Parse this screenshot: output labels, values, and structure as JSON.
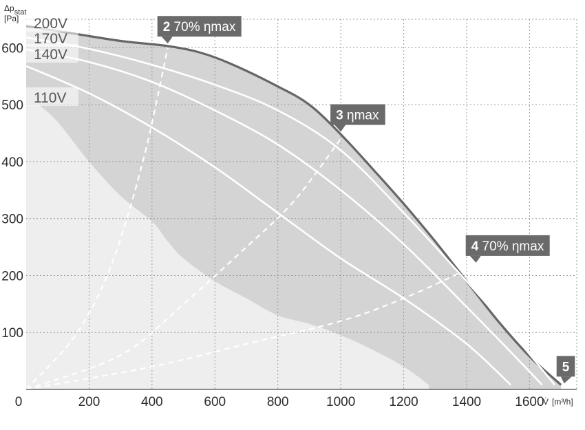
{
  "chart_data": {
    "type": "line",
    "title": "",
    "xlabel": "V̇",
    "xunit": "[m³/h]",
    "ylabel": "Δp_stat",
    "yunit": "[Pa]",
    "xlim": [
      0,
      1750
    ],
    "ylim": [
      0,
      650
    ],
    "x_ticks": [
      "0",
      "200",
      "400",
      "600",
      "800",
      "1000",
      "1200",
      "1400",
      "1600"
    ],
    "y_ticks": [
      "100",
      "200",
      "300",
      "400",
      "500",
      "600"
    ],
    "grid": true,
    "colors": {
      "area_dark": "#d4d4d4",
      "area_light": "#eeeeee",
      "max_curve": "#666666",
      "voltage_curve": "#ffffff",
      "label_box": "#6a6a6a",
      "grid": "#9a9a9a"
    },
    "voltage_curves": [
      {
        "label": "200V",
        "points": [
          [
            0,
            638
          ],
          [
            150,
            625
          ],
          [
            300,
            612
          ],
          [
            450,
            603
          ],
          [
            550,
            592
          ],
          [
            650,
            572
          ],
          [
            800,
            532
          ],
          [
            900,
            500
          ],
          [
            1000,
            448
          ],
          [
            1100,
            388
          ],
          [
            1200,
            326
          ],
          [
            1300,
            260
          ],
          [
            1400,
            190
          ],
          [
            1500,
            120
          ],
          [
            1600,
            58
          ],
          [
            1700,
            8
          ]
        ]
      },
      {
        "label": "170V",
        "points": [
          [
            0,
            618
          ],
          [
            200,
            598
          ],
          [
            400,
            570
          ],
          [
            600,
            535
          ],
          [
            800,
            490
          ],
          [
            1000,
            420
          ],
          [
            1200,
            310
          ],
          [
            1400,
            190
          ],
          [
            1550,
            95
          ],
          [
            1680,
            8
          ]
        ]
      },
      {
        "label": "140V",
        "points": [
          [
            0,
            597
          ],
          [
            200,
            575
          ],
          [
            400,
            540
          ],
          [
            600,
            490
          ],
          [
            800,
            430
          ],
          [
            1000,
            350
          ],
          [
            1200,
            255
          ],
          [
            1400,
            145
          ],
          [
            1550,
            60
          ],
          [
            1640,
            8
          ]
        ]
      },
      {
        "label": "110V",
        "points": [
          [
            0,
            568
          ],
          [
            200,
            520
          ],
          [
            400,
            460
          ],
          [
            600,
            390
          ],
          [
            800,
            310
          ],
          [
            1000,
            230
          ],
          [
            1200,
            160
          ],
          [
            1400,
            80
          ],
          [
            1540,
            8
          ]
        ]
      }
    ],
    "min_boundary": [
      [
        40,
        500
      ],
      [
        100,
        470
      ],
      [
        200,
        400
      ],
      [
        300,
        340
      ],
      [
        400,
        295
      ],
      [
        450,
        260
      ],
      [
        500,
        230
      ],
      [
        600,
        190
      ],
      [
        700,
        160
      ],
      [
        800,
        130
      ],
      [
        900,
        115
      ],
      [
        1000,
        95
      ],
      [
        1100,
        70
      ],
      [
        1200,
        40
      ],
      [
        1280,
        8
      ]
    ],
    "operating_lines": [
      {
        "label": "2",
        "points": [
          [
            0,
            0
          ],
          [
            150,
            90
          ],
          [
            250,
            190
          ],
          [
            320,
            300
          ],
          [
            380,
            420
          ],
          [
            420,
            520
          ],
          [
            450,
            600
          ]
        ]
      },
      {
        "label": "3",
        "points": [
          [
            0,
            0
          ],
          [
            300,
            60
          ],
          [
            500,
            150
          ],
          [
            700,
            250
          ],
          [
            850,
            330
          ],
          [
            1000,
            440
          ]
        ]
      },
      {
        "label": "4",
        "points": [
          [
            0,
            0
          ],
          [
            400,
            40
          ],
          [
            700,
            80
          ],
          [
            1000,
            120
          ],
          [
            1200,
            160
          ],
          [
            1400,
            210
          ]
        ]
      }
    ],
    "voltage_labels": [
      "200V",
      "170V",
      "140V",
      "110V"
    ],
    "point_labels": [
      {
        "num": "2",
        "text": "70% ηmax",
        "at": [
          450,
          605
        ]
      },
      {
        "num": "3",
        "text": "ηmax",
        "at": [
          1000,
          450
        ]
      },
      {
        "num": "4",
        "text": "70% ηmax",
        "at": [
          1430,
          220
        ]
      },
      {
        "num": "5",
        "text": "",
        "at": [
          1710,
          8
        ]
      }
    ]
  }
}
